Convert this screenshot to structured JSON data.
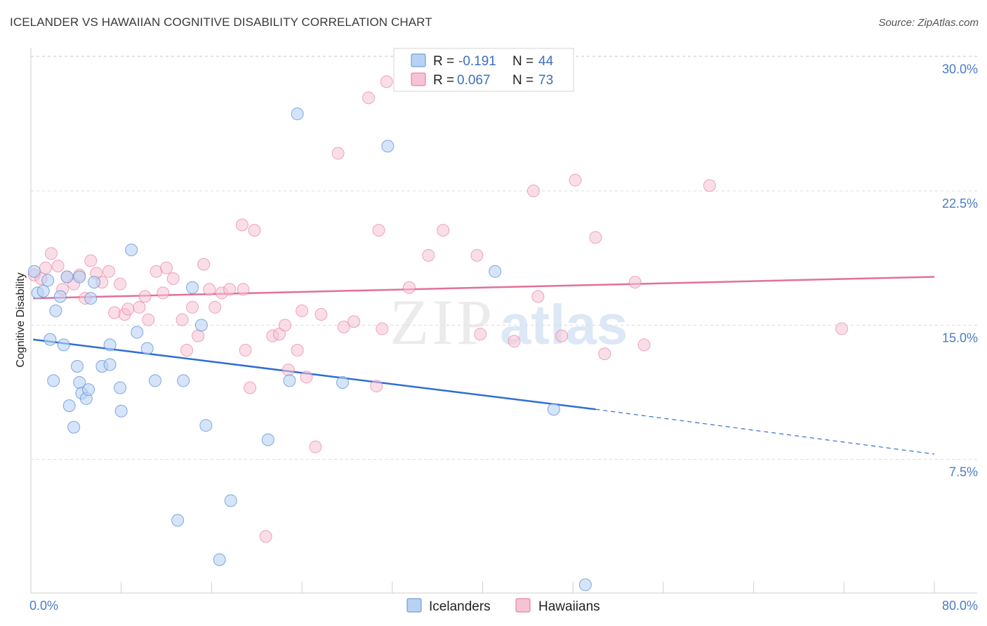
{
  "title": "ICELANDER VS HAWAIIAN COGNITIVE DISABILITY CORRELATION CHART",
  "source": "Source: ZipAtlas.com",
  "watermark": {
    "zip": "ZIP",
    "atlas": "atlas"
  },
  "colors": {
    "icelanders": "#5b8fd6",
    "icelanders_fill": "#b9d2f3",
    "hawaiians": "#e46f9a",
    "hawaiians_fill": "#f6c3d4",
    "tick_label": "#4a7cc7"
  },
  "legend": {
    "rows": [
      {
        "r_label": "R = ",
        "r_value": "-0.191",
        "n_label": "N = ",
        "n_value": "44"
      },
      {
        "r_label": "R = ",
        "r_value": "0.067",
        "n_label": "N = ",
        "n_value": "73"
      }
    ],
    "bottom": [
      "Icelanders",
      "Hawaiians"
    ]
  },
  "chart_data": {
    "type": "scatter",
    "title": "ICELANDER VS HAWAIIAN COGNITIVE DISABILITY CORRELATION CHART",
    "xlabel": "",
    "ylabel": "Cognitive Disability",
    "xlim": [
      0,
      80
    ],
    "ylim": [
      0,
      31.5
    ],
    "x_tick_labels": [
      "0.0%",
      "80.0%"
    ],
    "y_ticks": [
      7.5,
      15.0,
      22.5,
      30.0
    ],
    "y_tick_labels": [
      "7.5%",
      "15.0%",
      "22.5%",
      "30.0%"
    ],
    "grid": "horizontal dashed",
    "legend_position": "top-center",
    "series": [
      {
        "name": "Icelanders",
        "r": -0.191,
        "n": 44,
        "trend": {
          "x": [
            0.2,
            50.0
          ],
          "y": [
            14.2,
            10.3
          ],
          "dashed_to": [
            80.0,
            7.8
          ]
        },
        "points": [
          [
            0.3,
            18.0
          ],
          [
            0.6,
            16.8
          ],
          [
            1.1,
            16.9
          ],
          [
            1.5,
            17.5
          ],
          [
            1.7,
            14.2
          ],
          [
            2.0,
            11.9
          ],
          [
            2.2,
            15.8
          ],
          [
            2.6,
            16.6
          ],
          [
            2.9,
            13.9
          ],
          [
            3.2,
            17.7
          ],
          [
            3.4,
            10.5
          ],
          [
            3.8,
            9.3
          ],
          [
            4.1,
            12.7
          ],
          [
            4.3,
            11.8
          ],
          [
            4.5,
            11.2
          ],
          [
            4.9,
            10.9
          ],
          [
            5.1,
            11.4
          ],
          [
            5.3,
            16.5
          ],
          [
            5.6,
            17.4
          ],
          [
            6.3,
            12.7
          ],
          [
            7.0,
            12.8
          ],
          [
            7.0,
            13.9
          ],
          [
            7.9,
            11.5
          ],
          [
            8.0,
            10.2
          ],
          [
            8.9,
            19.2
          ],
          [
            9.4,
            14.6
          ],
          [
            10.3,
            13.7
          ],
          [
            11.0,
            11.9
          ],
          [
            13.0,
            4.1
          ],
          [
            13.5,
            11.9
          ],
          [
            14.3,
            17.1
          ],
          [
            15.1,
            15.0
          ],
          [
            15.5,
            9.4
          ],
          [
            16.7,
            1.9
          ],
          [
            17.7,
            5.2
          ],
          [
            21.0,
            8.6
          ],
          [
            22.9,
            11.9
          ],
          [
            23.6,
            26.8
          ],
          [
            27.6,
            11.8
          ],
          [
            31.6,
            25.0
          ],
          [
            41.1,
            18.0
          ],
          [
            46.3,
            10.3
          ],
          [
            49.1,
            0.5
          ],
          [
            4.3,
            17.7
          ]
        ]
      },
      {
        "name": "Hawaiians",
        "r": 0.067,
        "n": 73,
        "trend": {
          "x": [
            0.2,
            80.0
          ],
          "y": [
            16.5,
            17.7
          ]
        },
        "points": [
          [
            0.3,
            17.8
          ],
          [
            0.9,
            17.6
          ],
          [
            1.3,
            18.2
          ],
          [
            1.8,
            19.0
          ],
          [
            2.4,
            18.3
          ],
          [
            2.8,
            17.0
          ],
          [
            3.2,
            17.7
          ],
          [
            3.8,
            17.3
          ],
          [
            4.3,
            17.8
          ],
          [
            4.8,
            16.5
          ],
          [
            5.3,
            18.6
          ],
          [
            5.8,
            17.9
          ],
          [
            6.3,
            17.4
          ],
          [
            6.9,
            18.0
          ],
          [
            7.4,
            15.7
          ],
          [
            7.9,
            17.3
          ],
          [
            8.3,
            15.6
          ],
          [
            8.6,
            15.9
          ],
          [
            9.6,
            16.0
          ],
          [
            10.1,
            16.6
          ],
          [
            10.4,
            15.3
          ],
          [
            11.1,
            18.0
          ],
          [
            11.7,
            16.8
          ],
          [
            12.0,
            18.2
          ],
          [
            12.6,
            17.6
          ],
          [
            13.4,
            15.3
          ],
          [
            13.8,
            13.6
          ],
          [
            14.3,
            16.0
          ],
          [
            14.8,
            14.4
          ],
          [
            15.3,
            18.4
          ],
          [
            15.8,
            17.0
          ],
          [
            16.3,
            16.0
          ],
          [
            16.9,
            16.8
          ],
          [
            17.6,
            17.0
          ],
          [
            18.7,
            20.6
          ],
          [
            19.0,
            13.6
          ],
          [
            19.4,
            11.5
          ],
          [
            19.8,
            20.3
          ],
          [
            20.8,
            3.2
          ],
          [
            21.4,
            14.4
          ],
          [
            22.0,
            14.5
          ],
          [
            22.5,
            15.0
          ],
          [
            22.8,
            12.5
          ],
          [
            23.6,
            13.6
          ],
          [
            24.0,
            15.8
          ],
          [
            24.4,
            12.1
          ],
          [
            25.2,
            8.2
          ],
          [
            25.7,
            15.6
          ],
          [
            27.2,
            24.6
          ],
          [
            27.7,
            14.9
          ],
          [
            28.6,
            15.2
          ],
          [
            29.9,
            27.7
          ],
          [
            30.6,
            11.6
          ],
          [
            30.8,
            20.3
          ],
          [
            31.1,
            14.8
          ],
          [
            31.5,
            28.6
          ],
          [
            33.5,
            17.1
          ],
          [
            35.2,
            18.9
          ],
          [
            36.5,
            20.3
          ],
          [
            39.5,
            18.9
          ],
          [
            39.8,
            14.5
          ],
          [
            42.8,
            14.1
          ],
          [
            44.5,
            22.5
          ],
          [
            44.9,
            16.6
          ],
          [
            47.0,
            14.4
          ],
          [
            48.2,
            23.1
          ],
          [
            50.0,
            19.9
          ],
          [
            50.8,
            13.4
          ],
          [
            53.5,
            17.4
          ],
          [
            54.3,
            13.9
          ],
          [
            60.1,
            22.8
          ],
          [
            71.8,
            14.8
          ],
          [
            18.8,
            17.0
          ]
        ]
      }
    ]
  }
}
